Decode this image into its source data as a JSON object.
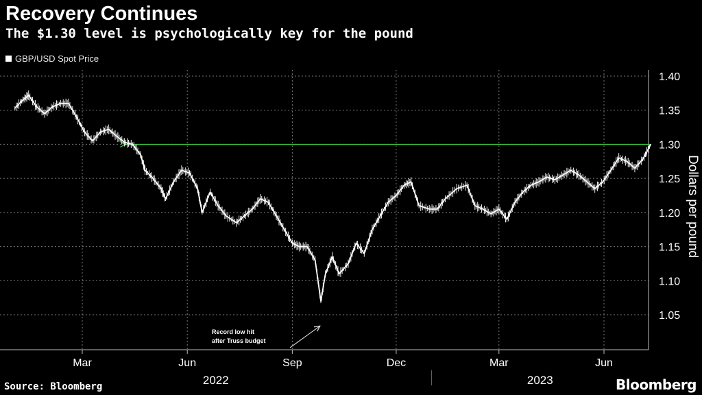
{
  "title": "Recovery Continues",
  "subtitle": "The $1.30 level is psychologically key for the pound",
  "legend": "GBP/USD Spot Price",
  "source": "Source: Bloomberg",
  "brand": "Bloomberg",
  "colors": {
    "background": "#000000",
    "series": "#ffffff",
    "reference_line": "#3ecf3e",
    "grid": "#7a7a7a"
  },
  "chart_data": {
    "type": "line",
    "title": "Recovery Continues",
    "subtitle": "The $1.30 level is psychologically key for the pound",
    "ylabel": "Dollars per pound",
    "ylim": [
      1.0,
      1.41
    ],
    "yticks": [
      "1.40",
      "1.35",
      "1.30",
      "1.25",
      "1.20",
      "1.15",
      "1.10",
      "1.05"
    ],
    "xlim": [
      "2022-01-01",
      "2023-07-15"
    ],
    "xticks": [
      {
        "date": "2022-03-01",
        "label": "Mar"
      },
      {
        "date": "2022-06-01",
        "label": "Jun"
      },
      {
        "date": "2022-09-01",
        "label": "Sep"
      },
      {
        "date": "2022-12-01",
        "label": "Dec"
      },
      {
        "date": "2023-03-01",
        "label": "Mar"
      },
      {
        "date": "2023-06-01",
        "label": "Jun"
      }
    ],
    "years": [
      {
        "label": "2022"
      },
      {
        "label": "2023"
      }
    ],
    "grid": true,
    "legend_position": "top-left",
    "series": [
      {
        "name": "GBP/USD Spot Price",
        "x": [
          "2022-01-01",
          "2022-01-08",
          "2022-01-13",
          "2022-01-20",
          "2022-01-27",
          "2022-02-03",
          "2022-02-10",
          "2022-02-17",
          "2022-02-24",
          "2022-03-03",
          "2022-03-10",
          "2022-03-17",
          "2022-03-24",
          "2022-03-31",
          "2022-04-07",
          "2022-04-14",
          "2022-04-21",
          "2022-04-25",
          "2022-05-02",
          "2022-05-09",
          "2022-05-13",
          "2022-05-20",
          "2022-05-27",
          "2022-06-03",
          "2022-06-10",
          "2022-06-14",
          "2022-06-21",
          "2022-06-28",
          "2022-07-05",
          "2022-07-14",
          "2022-07-21",
          "2022-07-28",
          "2022-08-04",
          "2022-08-11",
          "2022-08-18",
          "2022-08-25",
          "2022-09-01",
          "2022-09-07",
          "2022-09-14",
          "2022-09-21",
          "2022-09-26",
          "2022-09-30",
          "2022-10-06",
          "2022-10-12",
          "2022-10-20",
          "2022-10-27",
          "2022-11-03",
          "2022-11-10",
          "2022-11-17",
          "2022-11-24",
          "2022-12-01",
          "2022-12-08",
          "2022-12-14",
          "2022-12-21",
          "2022-12-30",
          "2023-01-06",
          "2023-01-13",
          "2023-01-23",
          "2023-02-01",
          "2023-02-08",
          "2023-02-15",
          "2023-02-22",
          "2023-03-01",
          "2023-03-08",
          "2023-03-15",
          "2023-03-22",
          "2023-03-29",
          "2023-04-05",
          "2023-04-12",
          "2023-04-19",
          "2023-04-26",
          "2023-05-03",
          "2023-05-10",
          "2023-05-17",
          "2023-05-24",
          "2023-05-31",
          "2023-06-07",
          "2023-06-14",
          "2023-06-21",
          "2023-06-28",
          "2023-07-05",
          "2023-07-12"
        ],
        "y": [
          1.353,
          1.365,
          1.372,
          1.355,
          1.345,
          1.355,
          1.36,
          1.36,
          1.34,
          1.318,
          1.305,
          1.318,
          1.322,
          1.312,
          1.303,
          1.3,
          1.285,
          1.262,
          1.25,
          1.235,
          1.22,
          1.245,
          1.262,
          1.258,
          1.235,
          1.2,
          1.23,
          1.21,
          1.195,
          1.185,
          1.195,
          1.205,
          1.22,
          1.215,
          1.195,
          1.175,
          1.155,
          1.15,
          1.15,
          1.13,
          1.07,
          1.11,
          1.135,
          1.11,
          1.125,
          1.155,
          1.14,
          1.175,
          1.195,
          1.215,
          1.225,
          1.24,
          1.245,
          1.21,
          1.205,
          1.205,
          1.22,
          1.235,
          1.24,
          1.21,
          1.205,
          1.198,
          1.205,
          1.19,
          1.215,
          1.23,
          1.24,
          1.245,
          1.252,
          1.248,
          1.255,
          1.262,
          1.255,
          1.245,
          1.235,
          1.245,
          1.262,
          1.28,
          1.275,
          1.265,
          1.278,
          1.3
        ]
      }
    ],
    "reference_line": {
      "value": 1.3,
      "from": "2022-04-08",
      "to": "2023-07-12"
    },
    "annotation": {
      "text_line1": "Record low hit",
      "text_line2": "after Truss budget",
      "date": "2022-09-26",
      "value": 1.035
    }
  }
}
